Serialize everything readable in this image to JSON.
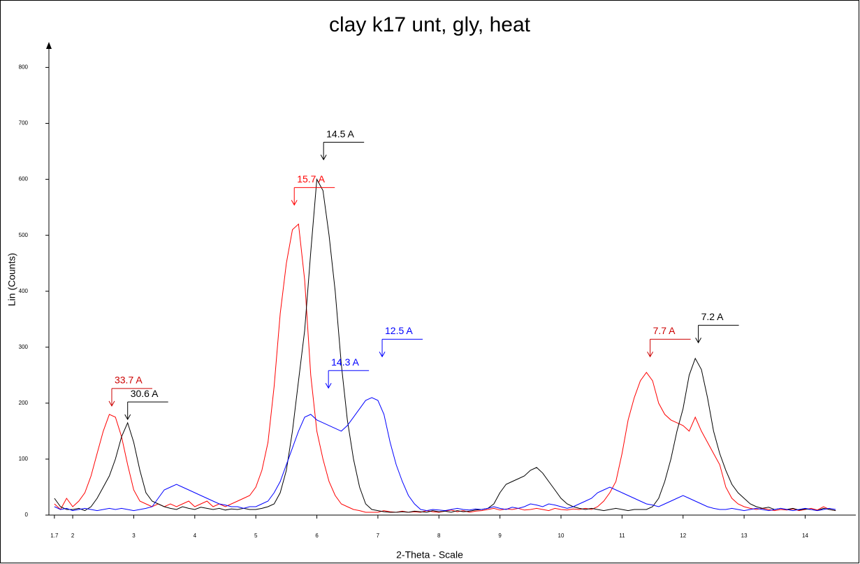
{
  "chart_data": {
    "type": "line",
    "title": "clay k17 unt, gly, heat",
    "x_label": "2-Theta - Scale",
    "y_label": "Lin (Counts)",
    "xlim": [
      1.61,
      14.83
    ],
    "ylim": [
      0,
      843
    ],
    "xticks": [
      1.7,
      2,
      3,
      4,
      5,
      6,
      7,
      8,
      9,
      10,
      11,
      12,
      13,
      14
    ],
    "yticks": [
      0,
      100,
      200,
      300,
      400,
      500,
      600,
      700,
      800
    ],
    "x": [
      1.7,
      1.8,
      1.9,
      2.0,
      2.1,
      2.2,
      2.3,
      2.4,
      2.5,
      2.6,
      2.7,
      2.8,
      2.9,
      3.0,
      3.1,
      3.2,
      3.3,
      3.4,
      3.5,
      3.6,
      3.7,
      3.8,
      3.9,
      4.0,
      4.1,
      4.2,
      4.3,
      4.4,
      4.5,
      4.6,
      4.7,
      4.8,
      4.9,
      5.0,
      5.1,
      5.2,
      5.3,
      5.4,
      5.5,
      5.6,
      5.7,
      5.8,
      5.9,
      6.0,
      6.1,
      6.2,
      6.3,
      6.4,
      6.5,
      6.6,
      6.7,
      6.8,
      6.9,
      7.0,
      7.1,
      7.2,
      7.3,
      7.4,
      7.5,
      7.6,
      7.7,
      7.8,
      7.9,
      8.0,
      8.1,
      8.2,
      8.3,
      8.4,
      8.5,
      8.6,
      8.7,
      8.8,
      8.9,
      9.0,
      9.1,
      9.2,
      9.3,
      9.4,
      9.5,
      9.6,
      9.7,
      9.8,
      9.9,
      10.0,
      10.1,
      10.2,
      10.3,
      10.4,
      10.5,
      10.6,
      10.7,
      10.8,
      10.9,
      11.0,
      11.1,
      11.2,
      11.3,
      11.4,
      11.5,
      11.6,
      11.7,
      11.8,
      11.9,
      12.0,
      12.1,
      12.2,
      12.3,
      12.4,
      12.5,
      12.6,
      12.7,
      12.8,
      12.9,
      13.0,
      13.1,
      13.2,
      13.3,
      13.4,
      13.5,
      13.6,
      13.7,
      13.8,
      13.9,
      14.0,
      14.1,
      14.2,
      14.3,
      14.4,
      14.5
    ],
    "series": [
      {
        "color": "#ff0000",
        "values": [
          20,
          10,
          30,
          15,
          25,
          40,
          70,
          110,
          150,
          180,
          175,
          140,
          90,
          45,
          25,
          20,
          15,
          20,
          15,
          20,
          15,
          20,
          25,
          15,
          20,
          25,
          15,
          20,
          15,
          20,
          25,
          30,
          35,
          50,
          80,
          130,
          230,
          360,
          450,
          510,
          520,
          420,
          250,
          150,
          100,
          60,
          35,
          20,
          15,
          10,
          8,
          5,
          5,
          5,
          8,
          6,
          5,
          7,
          5,
          6,
          5,
          8,
          6,
          5,
          7,
          9,
          6,
          8,
          5,
          7,
          8,
          10,
          12,
          9,
          11,
          10,
          12,
          9,
          10,
          12,
          10,
          8,
          12,
          10,
          9,
          11,
          10,
          12,
          10,
          15,
          25,
          40,
          60,
          110,
          170,
          210,
          240,
          255,
          240,
          200,
          180,
          170,
          165,
          160,
          150,
          175,
          150,
          130,
          110,
          90,
          50,
          30,
          20,
          15,
          12,
          10,
          12,
          10,
          8,
          10,
          9,
          11,
          8,
          10,
          12,
          9,
          15,
          10,
          8
        ]
      },
      {
        "color": "#000000",
        "values": [
          30,
          15,
          10,
          10,
          12,
          8,
          15,
          30,
          50,
          70,
          100,
          140,
          165,
          130,
          80,
          40,
          25,
          20,
          15,
          12,
          10,
          15,
          12,
          10,
          14,
          12,
          10,
          12,
          9,
          11,
          10,
          12,
          10,
          10,
          12,
          15,
          20,
          40,
          80,
          150,
          240,
          330,
          470,
          600,
          580,
          500,
          400,
          270,
          170,
          100,
          50,
          20,
          10,
          8,
          6,
          5,
          5,
          6,
          5,
          7,
          6,
          5,
          8,
          6,
          7,
          5,
          8,
          6,
          7,
          9,
          10,
          12,
          20,
          40,
          55,
          60,
          65,
          70,
          80,
          85,
          75,
          60,
          45,
          30,
          20,
          15,
          12,
          10,
          12,
          10,
          8,
          10,
          12,
          10,
          8,
          10,
          10,
          10,
          15,
          30,
          60,
          100,
          150,
          190,
          250,
          280,
          260,
          210,
          150,
          110,
          80,
          55,
          40,
          30,
          20,
          15,
          12,
          14,
          10,
          12,
          10,
          12,
          9,
          11,
          10,
          8,
          12,
          10,
          8
        ]
      },
      {
        "color": "#0000ff",
        "values": [
          15,
          10,
          12,
          8,
          10,
          12,
          10,
          8,
          10,
          12,
          10,
          12,
          10,
          8,
          10,
          12,
          15,
          30,
          45,
          50,
          55,
          50,
          45,
          40,
          35,
          30,
          25,
          20,
          18,
          15,
          15,
          12,
          15,
          15,
          20,
          25,
          40,
          60,
          90,
          120,
          150,
          175,
          180,
          170,
          165,
          160,
          155,
          150,
          160,
          175,
          190,
          205,
          210,
          205,
          180,
          130,
          90,
          60,
          35,
          20,
          10,
          8,
          10,
          9,
          8,
          10,
          12,
          10,
          9,
          11,
          10,
          12,
          15,
          12,
          10,
          14,
          12,
          15,
          20,
          18,
          15,
          20,
          18,
          15,
          12,
          15,
          20,
          25,
          30,
          40,
          45,
          50,
          45,
          40,
          35,
          30,
          25,
          20,
          18,
          15,
          20,
          25,
          30,
          35,
          30,
          25,
          20,
          15,
          12,
          10,
          10,
          12,
          10,
          8,
          10,
          12,
          10,
          8,
          10,
          12,
          10,
          8,
          10,
          12,
          10,
          8,
          10,
          12,
          10
        ]
      }
    ],
    "annotations": [
      {
        "label": "33.7 A",
        "x": 2.64,
        "y": 195,
        "color": "#cc0000"
      },
      {
        "label": "30.6 A",
        "x": 2.9,
        "y": 171,
        "color": "#000000"
      },
      {
        "label": "15.7 A",
        "x": 5.63,
        "y": 554,
        "color": "#ff0000"
      },
      {
        "label": "14.5 A",
        "x": 6.11,
        "y": 635,
        "color": "#000000"
      },
      {
        "label": "14.3 A",
        "x": 6.19,
        "y": 227,
        "color": "#0000ff"
      },
      {
        "label": "12.5 A",
        "x": 7.07,
        "y": 283,
        "color": "#0000ff"
      },
      {
        "label": "7.7 A",
        "x": 11.46,
        "y": 283,
        "color": "#cc0000"
      },
      {
        "label": "7.2 A",
        "x": 12.25,
        "y": 308,
        "color": "#000000"
      }
    ]
  }
}
